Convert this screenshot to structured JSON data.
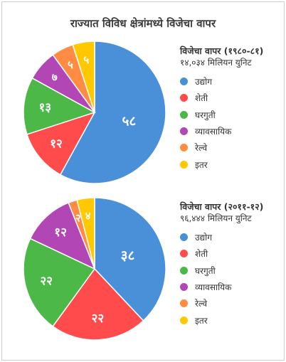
{
  "title": "राज्यात विविध क्षेत्रांमध्ये विजेचा वापर",
  "legend_labels": [
    "उद्योग",
    "शेती",
    "घरगुती",
    "व्यावसायिक",
    "रेल्वे",
    "इतर"
  ],
  "colors": [
    "#4A90D9",
    "#FF4B4B",
    "#4CB848",
    "#B346B5",
    "#FF8C42",
    "#FFC800"
  ],
  "chart_data": [
    {
      "type": "pie",
      "title": "विजेचा वापर (१९८०-८१)",
      "subtitle": "१४,०३४ मिलियन युनिट",
      "categories": [
        "उद्योग",
        "शेती",
        "घरगुती",
        "व्यावसायिक",
        "रेल्वे",
        "इतर"
      ],
      "values": [
        58,
        12,
        13,
        7,
        5,
        5
      ],
      "labels": [
        "५८",
        "१२",
        "१३",
        "७",
        "५",
        "५"
      ],
      "legend": "right"
    },
    {
      "type": "pie",
      "title": "विजेचा वापर (२०११-१२)",
      "subtitle": "९६,४४४ मिलियन युनिट",
      "categories": [
        "उद्योग",
        "शेती",
        "घरगुती",
        "व्यावसायिक",
        "रेल्वे",
        "इतर"
      ],
      "values": [
        38,
        22,
        22,
        12,
        2,
        4
      ],
      "labels": [
        "३८",
        "२२",
        "२२",
        "१२",
        "२",
        "४"
      ],
      "legend": "right"
    }
  ]
}
